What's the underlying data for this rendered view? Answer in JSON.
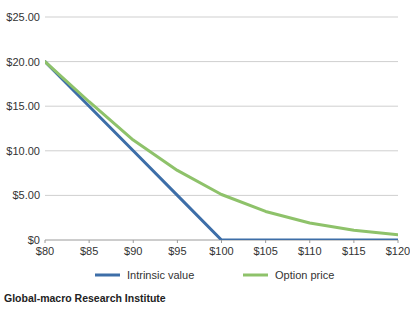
{
  "chart_data": {
    "type": "line",
    "x": [
      80,
      85,
      90,
      95,
      100,
      105,
      110,
      115,
      120
    ],
    "series": [
      {
        "name": "Intrinsic value",
        "color": "#3d6ea8",
        "values": [
          20,
          15,
          10,
          5,
          0,
          0,
          0,
          0,
          0
        ]
      },
      {
        "name": "Option price",
        "color": "#8ec26a",
        "values": [
          20,
          15.5,
          11.2,
          7.8,
          5.1,
          3.2,
          1.9,
          1.1,
          0.6
        ]
      }
    ],
    "xlim": [
      80,
      120
    ],
    "xticks": [
      {
        "value": 80,
        "label": "$80"
      },
      {
        "value": 85,
        "label": "$85"
      },
      {
        "value": 90,
        "label": "$90"
      },
      {
        "value": 95,
        "label": "$95"
      },
      {
        "value": 100,
        "label": "$100"
      },
      {
        "value": 105,
        "label": "$105"
      },
      {
        "value": 110,
        "label": "$110"
      },
      {
        "value": 115,
        "label": "$115"
      },
      {
        "value": 120,
        "label": "$120"
      }
    ],
    "ylim": [
      0,
      25
    ],
    "yticks": [
      {
        "value": 0,
        "label": "$0"
      },
      {
        "value": 5,
        "label": "$5.00"
      },
      {
        "value": 10,
        "label": "$10.00"
      },
      {
        "value": 15,
        "label": "$15.00"
      },
      {
        "value": 20,
        "label": "$20.00"
      },
      {
        "value": 25,
        "label": "$25.00"
      }
    ],
    "grid": true,
    "legend": "bottom",
    "source": "Global-macro Research Institute"
  }
}
